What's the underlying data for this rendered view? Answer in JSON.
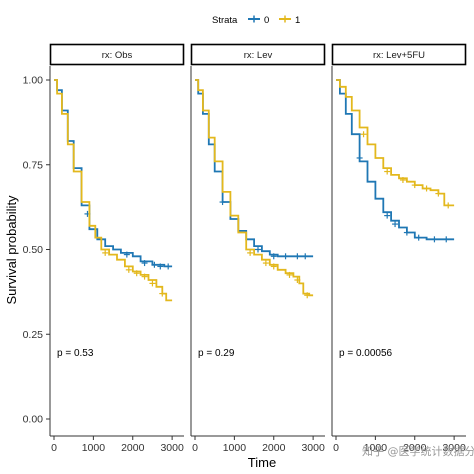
{
  "chart_data": {
    "type": "line",
    "chart_kind": "kaplan-meier survival curves (faceted)",
    "xlabel": "Time",
    "ylabel": "Survival probability",
    "xlim": [
      0,
      3200
    ],
    "ylim": [
      0,
      1
    ],
    "x_ticks": [
      0,
      1000,
      2000,
      3000
    ],
    "x_tick_labels": [
      "0",
      "1000",
      "2000",
      "3000"
    ],
    "y_ticks": [
      0,
      0.25,
      0.5,
      0.75,
      1.0
    ],
    "y_tick_labels": [
      "0.00",
      "0.25",
      "0.50",
      "0.75",
      "1.00"
    ],
    "grid": false,
    "legend": {
      "title": "Strata",
      "position": "top",
      "entries": [
        {
          "label": "0",
          "color": "#1f77b4"
        },
        {
          "label": "1",
          "color": "#e3b81d"
        }
      ]
    },
    "panels": [
      {
        "strip": "rx: Obs",
        "p_value": "p = 0.53",
        "series": [
          {
            "name": "0",
            "color": "#1f77b4",
            "points": [
              [
                0,
                1.0
              ],
              [
                80,
                0.97
              ],
              [
                200,
                0.91
              ],
              [
                350,
                0.82
              ],
              [
                500,
                0.74
              ],
              [
                700,
                0.63
              ],
              [
                900,
                0.56
              ],
              [
                1100,
                0.53
              ],
              [
                1300,
                0.51
              ],
              [
                1500,
                0.5
              ],
              [
                1700,
                0.49
              ],
              [
                2000,
                0.48
              ],
              [
                2200,
                0.465
              ],
              [
                2500,
                0.455
              ],
              [
                2800,
                0.45
              ],
              [
                3000,
                0.45
              ]
            ],
            "censor": [
              [
                850,
                0.605
              ],
              [
                1850,
                0.485
              ],
              [
                2300,
                0.46
              ],
              [
                2550,
                0.455
              ],
              [
                2700,
                0.45
              ],
              [
                2900,
                0.45
              ]
            ]
          },
          {
            "name": "1",
            "color": "#e3b81d",
            "points": [
              [
                0,
                1.0
              ],
              [
                80,
                0.96
              ],
              [
                200,
                0.9
              ],
              [
                350,
                0.81
              ],
              [
                500,
                0.73
              ],
              [
                700,
                0.64
              ],
              [
                900,
                0.57
              ],
              [
                1050,
                0.535
              ],
              [
                1200,
                0.5
              ],
              [
                1400,
                0.485
              ],
              [
                1600,
                0.47
              ],
              [
                1800,
                0.45
              ],
              [
                2000,
                0.435
              ],
              [
                2200,
                0.425
              ],
              [
                2400,
                0.41
              ],
              [
                2600,
                0.39
              ],
              [
                2750,
                0.37
              ],
              [
                2850,
                0.35
              ],
              [
                3000,
                0.35
              ]
            ],
            "censor": [
              [
                1300,
                0.49
              ],
              [
                1900,
                0.44
              ],
              [
                2100,
                0.43
              ],
              [
                2300,
                0.42
              ],
              [
                2500,
                0.4
              ],
              [
                2750,
                0.37
              ]
            ]
          }
        ]
      },
      {
        "strip": "rx: Lev",
        "p_value": "p = 0.29",
        "series": [
          {
            "name": "0",
            "color": "#1f77b4",
            "points": [
              [
                0,
                1.0
              ],
              [
                80,
                0.96
              ],
              [
                200,
                0.9
              ],
              [
                350,
                0.81
              ],
              [
                500,
                0.73
              ],
              [
                700,
                0.64
              ],
              [
                900,
                0.59
              ],
              [
                1100,
                0.555
              ],
              [
                1300,
                0.53
              ],
              [
                1500,
                0.51
              ],
              [
                1700,
                0.495
              ],
              [
                1900,
                0.485
              ],
              [
                2100,
                0.48
              ],
              [
                2500,
                0.48
              ],
              [
                3000,
                0.48
              ]
            ],
            "censor": [
              [
                700,
                0.64
              ],
              [
                1600,
                0.5
              ],
              [
                2000,
                0.48
              ],
              [
                2300,
                0.48
              ],
              [
                2600,
                0.48
              ],
              [
                2800,
                0.48
              ]
            ]
          },
          {
            "name": "1",
            "color": "#e3b81d",
            "points": [
              [
                0,
                1.0
              ],
              [
                80,
                0.97
              ],
              [
                200,
                0.91
              ],
              [
                350,
                0.83
              ],
              [
                500,
                0.76
              ],
              [
                700,
                0.67
              ],
              [
                900,
                0.6
              ],
              [
                1100,
                0.55
              ],
              [
                1300,
                0.5
              ],
              [
                1500,
                0.485
              ],
              [
                1700,
                0.47
              ],
              [
                1900,
                0.455
              ],
              [
                2100,
                0.44
              ],
              [
                2300,
                0.43
              ],
              [
                2500,
                0.42
              ],
              [
                2650,
                0.4
              ],
              [
                2750,
                0.37
              ],
              [
                2900,
                0.365
              ],
              [
                3000,
                0.365
              ]
            ],
            "censor": [
              [
                1400,
                0.49
              ],
              [
                1800,
                0.46
              ],
              [
                2000,
                0.45
              ],
              [
                2400,
                0.425
              ],
              [
                2600,
                0.41
              ],
              [
                2850,
                0.365
              ]
            ]
          }
        ]
      },
      {
        "strip": "rx: Lev+5FU",
        "p_value": "p = 0.00056",
        "series": [
          {
            "name": "0",
            "color": "#1f77b4",
            "points": [
              [
                0,
                1.0
              ],
              [
                100,
                0.96
              ],
              [
                250,
                0.9
              ],
              [
                400,
                0.84
              ],
              [
                600,
                0.76
              ],
              [
                800,
                0.7
              ],
              [
                1000,
                0.65
              ],
              [
                1200,
                0.61
              ],
              [
                1400,
                0.585
              ],
              [
                1600,
                0.565
              ],
              [
                1800,
                0.55
              ],
              [
                2000,
                0.535
              ],
              [
                2300,
                0.53
              ],
              [
                2700,
                0.53
              ],
              [
                3000,
                0.53
              ]
            ],
            "censor": [
              [
                600,
                0.77
              ],
              [
                1300,
                0.6
              ],
              [
                1500,
                0.575
              ],
              [
                1800,
                0.55
              ],
              [
                2100,
                0.535
              ],
              [
                2500,
                0.53
              ],
              [
                2800,
                0.53
              ]
            ]
          },
          {
            "name": "1",
            "color": "#e3b81d",
            "points": [
              [
                0,
                1.0
              ],
              [
                100,
                0.98
              ],
              [
                250,
                0.95
              ],
              [
                400,
                0.91
              ],
              [
                600,
                0.86
              ],
              [
                800,
                0.81
              ],
              [
                1000,
                0.77
              ],
              [
                1200,
                0.74
              ],
              [
                1400,
                0.72
              ],
              [
                1600,
                0.71
              ],
              [
                1800,
                0.7
              ],
              [
                2000,
                0.69
              ],
              [
                2200,
                0.68
              ],
              [
                2400,
                0.675
              ],
              [
                2600,
                0.665
              ],
              [
                2750,
                0.63
              ],
              [
                3000,
                0.63
              ]
            ],
            "censor": [
              [
                700,
                0.84
              ],
              [
                1300,
                0.73
              ],
              [
                1700,
                0.705
              ],
              [
                2000,
                0.69
              ],
              [
                2300,
                0.68
              ],
              [
                2600,
                0.665
              ],
              [
                2850,
                0.63
              ]
            ]
          }
        ]
      }
    ]
  },
  "watermark": "知乎 @医学统计数据分析"
}
